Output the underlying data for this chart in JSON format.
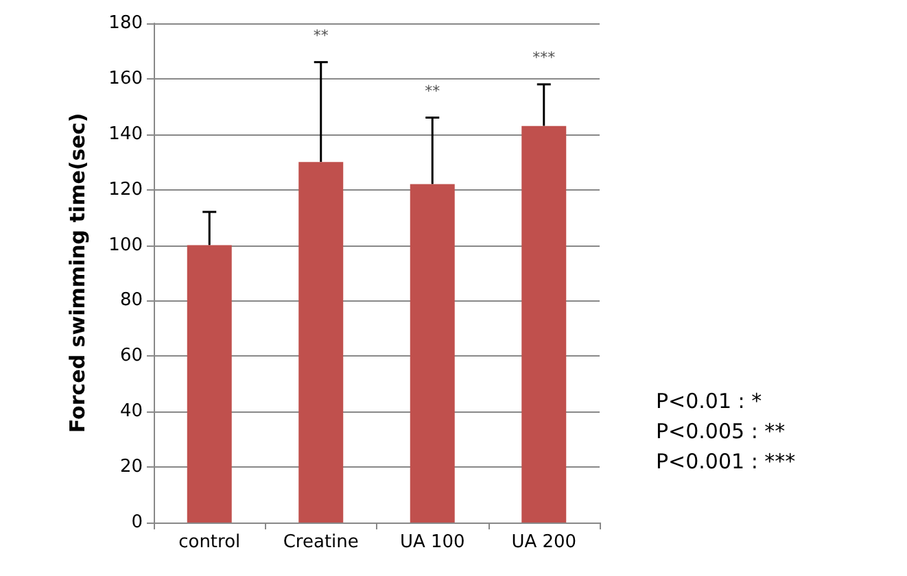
{
  "chart_data": {
    "type": "bar",
    "ylabel": "Forced swimming time(sec)",
    "categories": [
      "control",
      "Creatine",
      "UA 100",
      "UA 200"
    ],
    "series": [
      {
        "color": "#c0504d",
        "values": [
          100,
          130,
          122,
          143
        ],
        "errors": [
          12,
          36,
          24,
          15
        ]
      }
    ],
    "ylim": [
      0,
      180
    ],
    "yticks": [
      0,
      20,
      40,
      60,
      80,
      100,
      120,
      140,
      160,
      180
    ],
    "grid": "y",
    "annotations": [
      "**",
      "**",
      "***",
      "P<0.01 : *",
      "P<0.005 : **",
      "P<0.001 : ***"
    ]
  }
}
